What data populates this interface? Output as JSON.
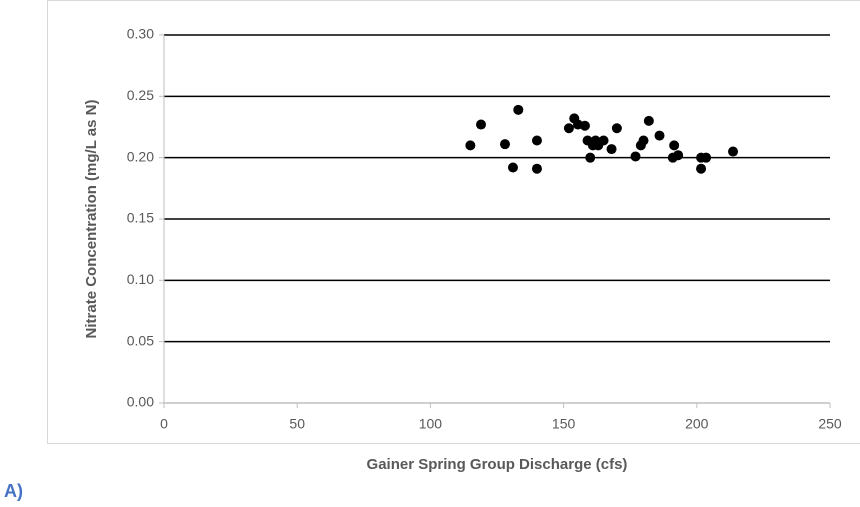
{
  "chart_data": {
    "type": "scatter",
    "x_label": "Gainer Spring Group Discharge (cfs)",
    "y_label": "Nitrate Concentration (mg/L as N)",
    "panel_label": "A)",
    "color": "#000000",
    "grid": true,
    "xlim": [
      0,
      250
    ],
    "xticks": [
      0,
      50,
      100,
      150,
      200,
      250
    ],
    "ylim": [
      0,
      0.3
    ],
    "yticks": [
      {
        "value": 0,
        "label": "0.00"
      },
      {
        "value": 0.05,
        "label": "0.05"
      },
      {
        "value": 0.1,
        "label": "0.10"
      },
      {
        "value": 0.15,
        "label": "0.15"
      },
      {
        "value": 0.2,
        "label": "0.20"
      },
      {
        "value": 0.25,
        "label": "0.25"
      },
      {
        "value": 0.3,
        "label": "0.30"
      }
    ],
    "x": [
      115,
      119,
      128,
      131,
      133,
      140,
      140,
      152,
      154,
      155.4,
      158,
      159,
      160,
      161,
      162,
      163,
      165,
      168,
      170,
      177,
      179,
      180,
      182,
      186,
      191.5,
      191,
      193,
      201.6,
      201.6,
      203.5,
      213.6
    ],
    "values": [
      0.21,
      0.227,
      0.211,
      0.192,
      0.239,
      0.214,
      0.191,
      0.224,
      0.232,
      0.227,
      0.226,
      0.214,
      0.2,
      0.21,
      0.214,
      0.21,
      0.214,
      0.207,
      0.224,
      0.201,
      0.21,
      0.214,
      0.23,
      0.218,
      0.21,
      0.2,
      0.202,
      0.191,
      0.2,
      0.2,
      0.205
    ]
  }
}
